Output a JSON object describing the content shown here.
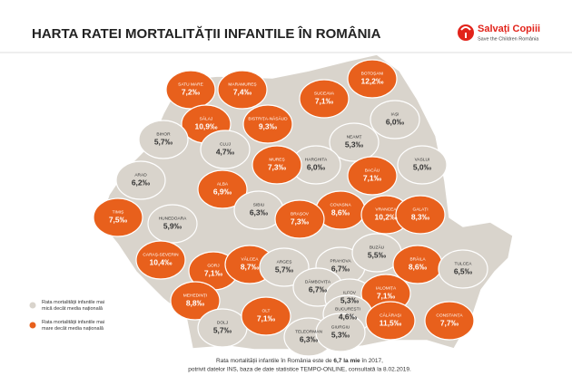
{
  "header": {
    "title": "HARTA RATEI MORTALITĂȚII INFANTILE ÎN ROMÂNIA",
    "logo_name": "Salvați Copiii",
    "logo_sub": "Save the Children România"
  },
  "counties": [
    {
      "name": "SATU MARE",
      "rate": "7,2‰",
      "color": "#e8601c"
    },
    {
      "name": "MARAMUREȘ",
      "rate": "7,4‰",
      "color": "#e8601c"
    },
    {
      "name": "BOTOȘANI",
      "rate": "12,2‰",
      "color": "#e8601c"
    },
    {
      "name": "SUCEAVA",
      "rate": "7,1‰",
      "color": "#e8601c"
    },
    {
      "name": "SĂLAJ",
      "rate": "10,9‰",
      "color": "#e8601c"
    },
    {
      "name": "BISTRIȚA-NĂSĂUD",
      "rate": "9,3‰",
      "color": "#e8601c"
    },
    {
      "name": "IAȘI",
      "rate": "6,0‰",
      "color": "#d9d4cc"
    },
    {
      "name": "BIHOR",
      "rate": "5,7‰",
      "color": "#d9d4cc"
    },
    {
      "name": "CLUJ",
      "rate": "4,7‰",
      "color": "#d9d4cc"
    },
    {
      "name": "NEAMȚ",
      "rate": "5,3‰",
      "color": "#d9d4cc"
    },
    {
      "name": "HARGHITA",
      "rate": "6,0‰",
      "color": "#d9d4cc"
    },
    {
      "name": "MUREȘ",
      "rate": "7,3‰",
      "color": "#e8601c"
    },
    {
      "name": "VASLUI",
      "rate": "5,0‰",
      "color": "#d9d4cc"
    },
    {
      "name": "BACĂU",
      "rate": "7,1‰",
      "color": "#e8601c"
    },
    {
      "name": "ARAD",
      "rate": "6,2‰",
      "color": "#d9d4cc"
    },
    {
      "name": "ALBA",
      "rate": "6,9‰",
      "color": "#e8601c"
    },
    {
      "name": "COVASNA",
      "rate": "8,6‰",
      "color": "#e8601c"
    },
    {
      "name": "SIBIU",
      "rate": "6,3‰",
      "color": "#d9d4cc"
    },
    {
      "name": "TIMIȘ",
      "rate": "7,5‰",
      "color": "#e8601c"
    },
    {
      "name": "HUNEDOARA",
      "rate": "5,9‰",
      "color": "#d9d4cc"
    },
    {
      "name": "BRAȘOV",
      "rate": "7,3‰",
      "color": "#e8601c"
    },
    {
      "name": "VRANCEA",
      "rate": "10,2‰",
      "color": "#e8601c"
    },
    {
      "name": "GALAȚI",
      "rate": "8,3‰",
      "color": "#e8601c"
    },
    {
      "name": "CARAȘ-SEVERIN",
      "rate": "10,4‰",
      "color": "#e8601c"
    },
    {
      "name": "GORJ",
      "rate": "7,1‰",
      "color": "#e8601c"
    },
    {
      "name": "VÂLCEA",
      "rate": "8,7‰",
      "color": "#e8601c"
    },
    {
      "name": "ARGEȘ",
      "rate": "5,7‰",
      "color": "#d9d4cc"
    },
    {
      "name": "PRAHOVA",
      "rate": "6,7‰",
      "color": "#d9d4cc"
    },
    {
      "name": "BUZĂU",
      "rate": "5,5‰",
      "color": "#d9d4cc"
    },
    {
      "name": "BRĂILA",
      "rate": "8,6‰",
      "color": "#e8601c"
    },
    {
      "name": "TULCEA",
      "rate": "6,5‰",
      "color": "#d9d4cc"
    },
    {
      "name": "MEHEDINȚI",
      "rate": "8,8‰",
      "color": "#e8601c"
    },
    {
      "name": "DÂMBOVIȚA",
      "rate": "6,7‰",
      "color": "#d9d4cc"
    },
    {
      "name": "ILFOV",
      "rate": "5,3‰",
      "color": "#d9d4cc"
    },
    {
      "name": "IALOMIȚA",
      "rate": "7,1‰",
      "color": "#e8601c"
    },
    {
      "name": "BUCUREȘTI",
      "rate": "4,6‰",
      "color": "#d9d4cc"
    },
    {
      "name": "CĂLĂRAȘI",
      "rate": "11,5‰",
      "color": "#e8601c"
    },
    {
      "name": "CONSTANȚA",
      "rate": "7,7‰",
      "color": "#e8601c"
    },
    {
      "name": "DOLJ",
      "rate": "5,7‰",
      "color": "#d9d4cc"
    },
    {
      "name": "OLT",
      "rate": "7,1‰",
      "color": "#e8601c"
    },
    {
      "name": "TELEORMAN",
      "rate": "6,3‰",
      "color": "#d9d4cc"
    },
    {
      "name": "GIURGIU",
      "rate": "5,3‰",
      "color": "#d9d4cc"
    }
  ],
  "legend": [
    {
      "label": "Rata mortalității infantile mai mică decât media națională",
      "color": "#d9d4cc"
    },
    {
      "label": "Rata mortalității infantile mai mare decât media națională",
      "color": "#e8601c"
    }
  ],
  "footer": {
    "before": "Rata mortalității infantile în România este de ",
    "bold": "6,7 la mie",
    "after": " în 2017,",
    "line2": "potrivit datelor INS, baza de date statistice TEMPO-ONLINE, consultată la 8.02.2019."
  }
}
